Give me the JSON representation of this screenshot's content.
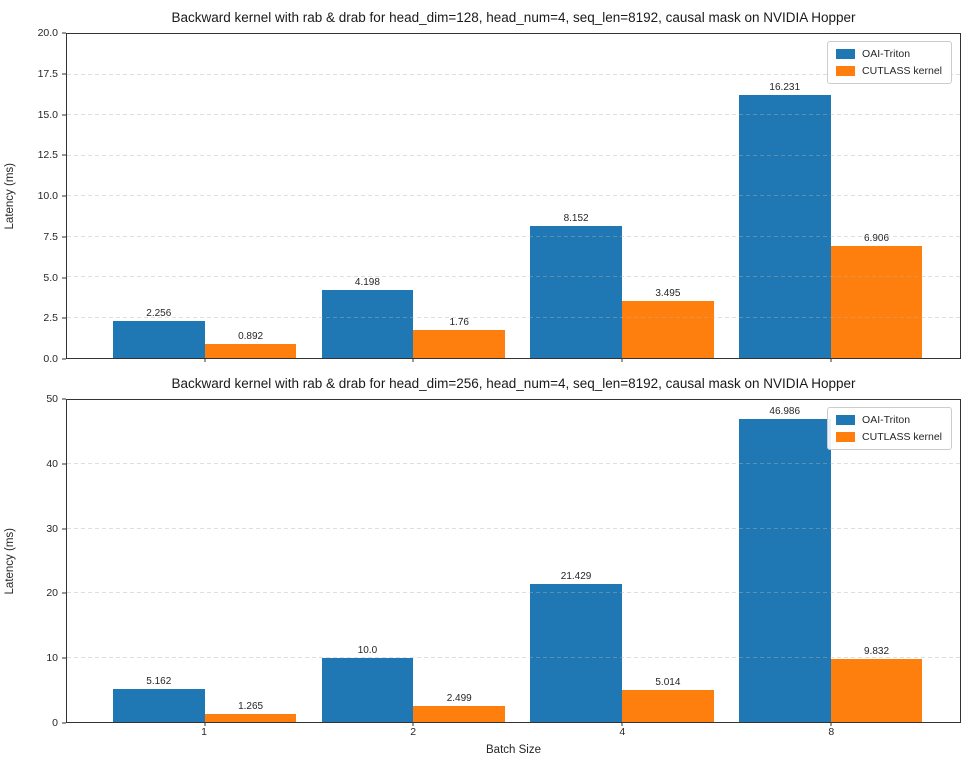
{
  "colors": {
    "series_blue": "#1f77b4",
    "series_orange": "#ff7f0e",
    "grid": "#b2b2b2",
    "spine": "#333333",
    "background": "#ffffff"
  },
  "chart_data": [
    {
      "type": "bar",
      "title": "Backward kernel with rab & drab for head_dim=128, head_num=4, seq_len=8192, causal mask on NVIDIA Hopper",
      "xlabel": "",
      "ylabel": "Latency (ms)",
      "ylim": [
        0,
        20
      ],
      "yticks": [
        "0.0",
        "2.5",
        "5.0",
        "7.5",
        "10.0",
        "12.5",
        "15.0",
        "17.5",
        "20.0"
      ],
      "categories": [
        "1",
        "2",
        "4",
        "8"
      ],
      "show_x_tick_labels": false,
      "grid": "horizontal dashed, drawn above bars",
      "legend_position": "upper right",
      "series": [
        {
          "name": "OAI-Triton",
          "color": "#1f77b4",
          "values": [
            2.256,
            4.198,
            8.152,
            16.231
          ],
          "labels": [
            "2.256",
            "4.198",
            "8.152",
            "16.231"
          ]
        },
        {
          "name": "CUTLASS kernel",
          "color": "#ff7f0e",
          "values": [
            0.892,
            1.76,
            3.495,
            6.906
          ],
          "labels": [
            "0.892",
            "1.76",
            "3.495",
            "6.906"
          ]
        }
      ]
    },
    {
      "type": "bar",
      "title": "Backward kernel with rab & drab for head_dim=256, head_num=4, seq_len=8192, causal mask on NVIDIA Hopper",
      "xlabel": "Batch Size",
      "ylabel": "Latency (ms)",
      "ylim": [
        0,
        50
      ],
      "yticks": [
        "0",
        "10",
        "20",
        "30",
        "40",
        "50"
      ],
      "categories": [
        "1",
        "2",
        "4",
        "8"
      ],
      "show_x_tick_labels": true,
      "grid": "horizontal dashed, drawn above bars",
      "legend_position": "upper right",
      "series": [
        {
          "name": "OAI-Triton",
          "color": "#1f77b4",
          "values": [
            5.162,
            10.0,
            21.429,
            46.986
          ],
          "labels": [
            "5.162",
            "10.0",
            "21.429",
            "46.986"
          ]
        },
        {
          "name": "CUTLASS kernel",
          "color": "#ff7f0e",
          "values": [
            1.265,
            2.499,
            5.014,
            9.832
          ],
          "labels": [
            "1.265",
            "2.499",
            "5.014",
            "9.832"
          ]
        }
      ]
    }
  ]
}
